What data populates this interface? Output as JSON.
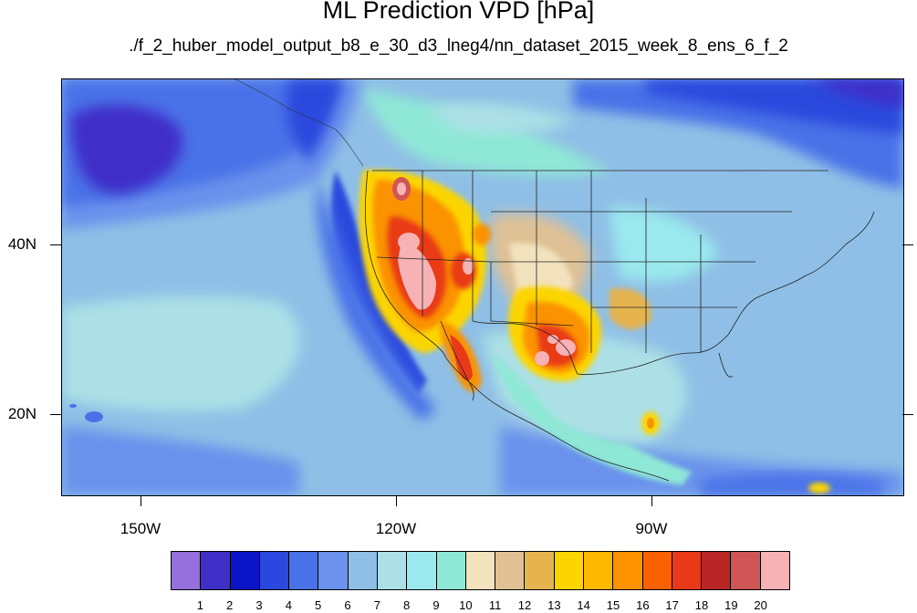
{
  "title": "ML Prediction VPD [hPa]",
  "subtitle": "./f_2_huber_model_output_b8_e_30_d3_lneg4/nn_dataset_2015_week_8_ens_6_f_2",
  "axes": {
    "lat_labels": [
      "40N",
      "20N"
    ],
    "lon_labels": [
      "150W",
      "120W",
      "90W"
    ]
  },
  "colorbar": {
    "labels": [
      "1",
      "2",
      "3",
      "4",
      "5",
      "6",
      "7",
      "8",
      "9",
      "10",
      "11",
      "12",
      "13",
      "14",
      "15",
      "16",
      "17",
      "18",
      "19",
      "20"
    ],
    "colors": [
      "#9370db",
      "#3f2fc8",
      "#0c14c8",
      "#2a48dd",
      "#4a72e8",
      "#6b92ec",
      "#8fbfe6",
      "#ace0e6",
      "#9ae9ee",
      "#8fe8d6",
      "#f2e2bd",
      "#dfc195",
      "#e5b44f",
      "#fcd500",
      "#fdb800",
      "#fc9200",
      "#fa6100",
      "#e83a18",
      "#b82626",
      "#d05656",
      "#f7b2b6"
    ]
  }
}
